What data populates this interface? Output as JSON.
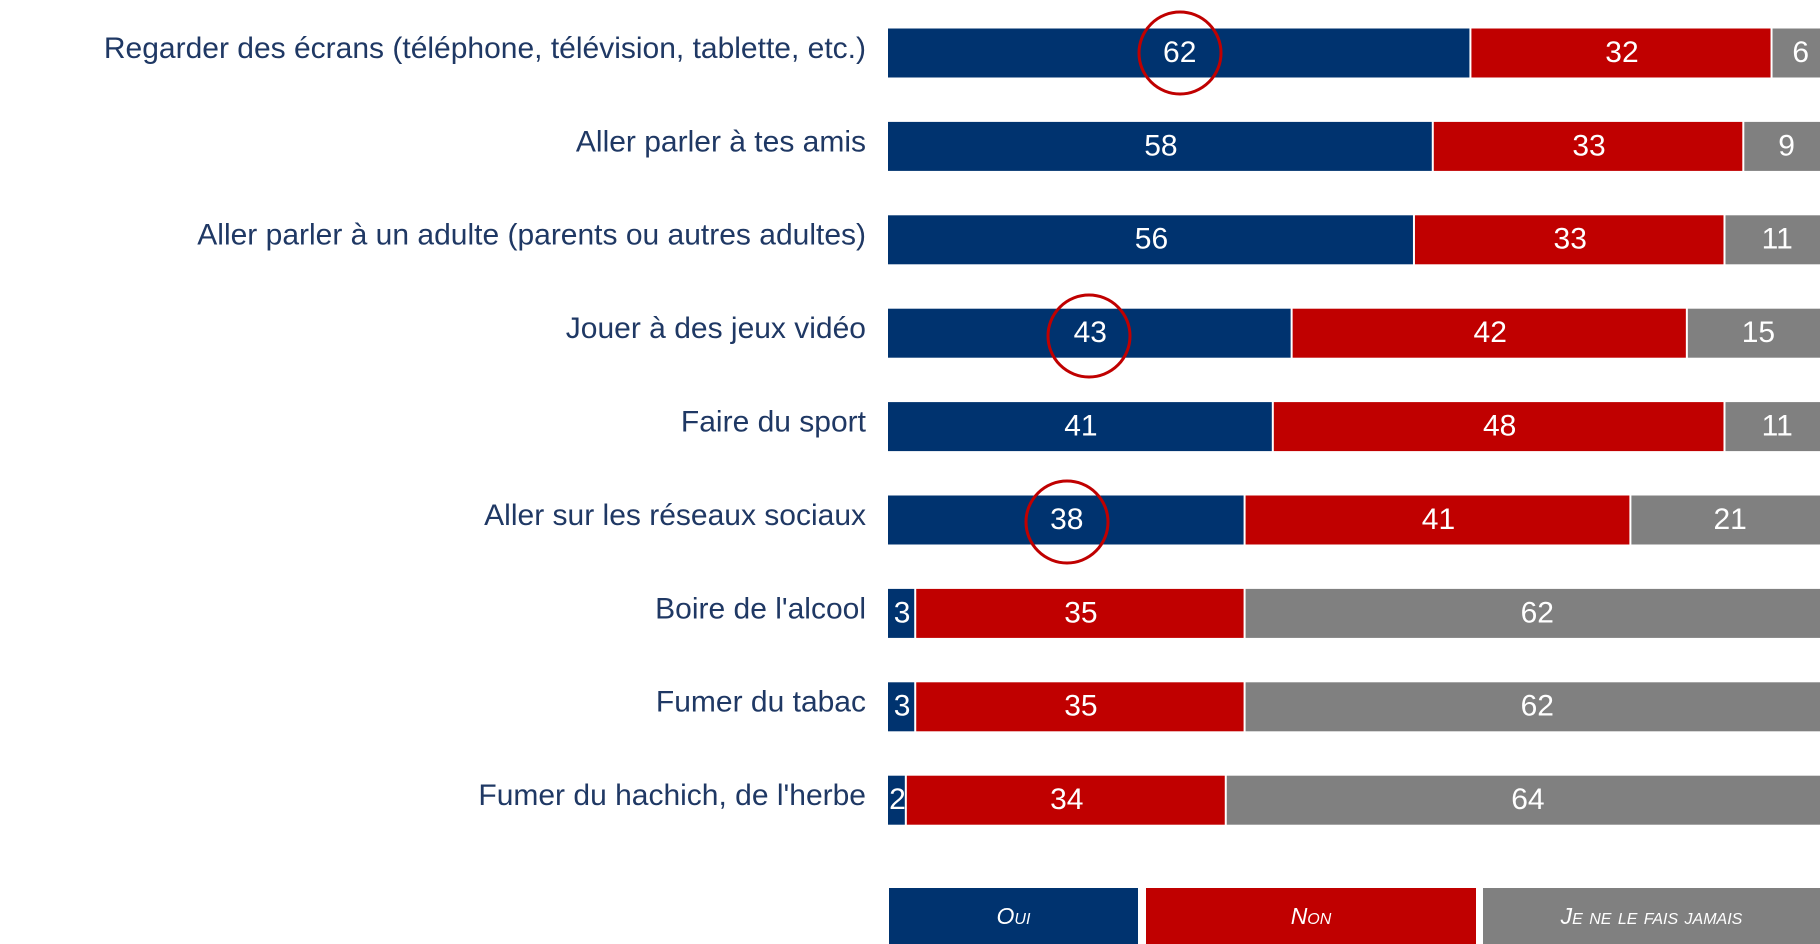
{
  "chart_data": {
    "type": "stacked-bar-horizontal",
    "categories": [
      "Regarder des écrans (téléphone, télévision, tablette, etc.)",
      "Aller parler à tes amis",
      "Aller parler à un adulte (parents ou autres adultes)",
      "Jouer à des jeux vidéo",
      "Faire du sport",
      "Aller sur les réseaux sociaux",
      "Boire de l'alcool",
      "Fumer du tabac",
      "Fumer du hachich, de l'herbe"
    ],
    "series": [
      {
        "name": "Oui",
        "color": "#00336f",
        "values": [
          62,
          58,
          56,
          43,
          41,
          38,
          3,
          3,
          2
        ]
      },
      {
        "name": "Non",
        "color": "#c00000",
        "values": [
          32,
          33,
          33,
          42,
          48,
          41,
          35,
          35,
          34
        ]
      },
      {
        "name": "Je ne le fais jamais",
        "color": "#808080",
        "values": [
          6,
          9,
          11,
          15,
          11,
          21,
          62,
          62,
          64
        ]
      }
    ],
    "xlim": [
      0,
      100
    ]
  }
}
